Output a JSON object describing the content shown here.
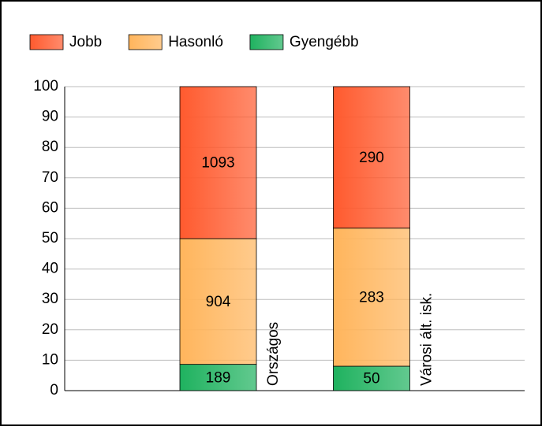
{
  "chart_data": {
    "type": "bar",
    "stacking": "percent",
    "categories": [
      "Országos",
      "Városi ált. isk."
    ],
    "series": [
      {
        "name": "Gyengébb",
        "color": "#1fb25f",
        "values": [
          189,
          50
        ]
      },
      {
        "name": "Hasonló",
        "color": "#ffb55c",
        "values": [
          904,
          283
        ]
      },
      {
        "name": "Jobb",
        "color": "#ff5a2e",
        "values": [
          1093,
          290
        ]
      }
    ],
    "legend_order": [
      2,
      1,
      0
    ],
    "ylim": [
      0,
      100
    ],
    "yticks": [
      0,
      10,
      20,
      30,
      40,
      50,
      60,
      70,
      80,
      90,
      100
    ],
    "grid": true
  }
}
